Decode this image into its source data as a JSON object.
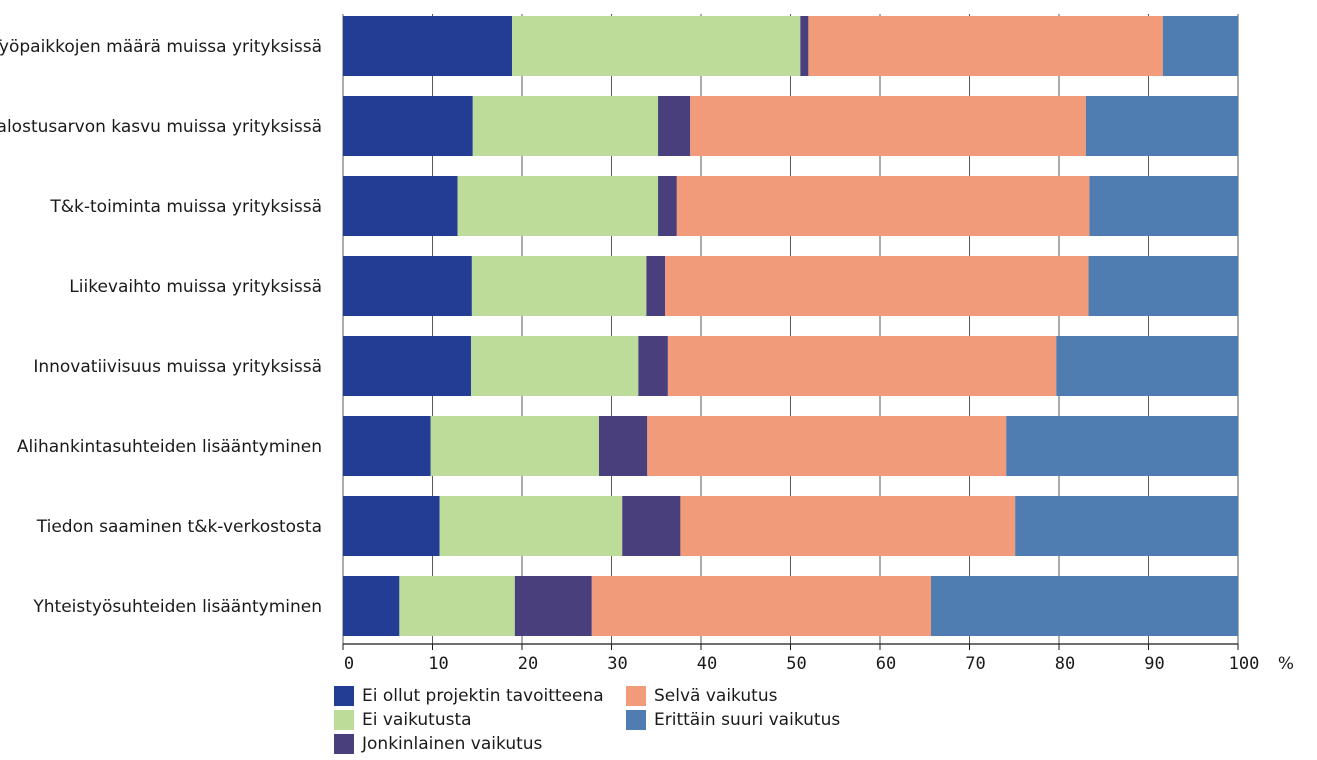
{
  "chart_data": {
    "type": "bar",
    "orientation": "horizontal",
    "stacked": true,
    "categories": [
      "Työpaikkojen määrä muissa yrityksissä",
      "Jalostusarvon kasvu muissa yrityksissä",
      "T&k-toiminta muissa yrityksissä",
      "Liikevaihto muissa yrityksissä",
      "Innovatiivisuus muissa yrityksissä",
      "Alihankintasuhteiden lisääntyminen",
      "Tiedon saaminen t&k-verkostosta",
      "Yhteistyösuhteiden lisääntyminen"
    ],
    "series": [
      {
        "name": "Ei ollut projektin tavoitteena",
        "color": "#233d94",
        "values": [
          18.9,
          14.5,
          12.8,
          14.4,
          14.3,
          9.8,
          10.8,
          6.3
        ]
      },
      {
        "name": "Ei vaikutusta",
        "color": "#bddc9a",
        "values": [
          32.2,
          20.7,
          22.4,
          19.5,
          18.7,
          18.8,
          20.4,
          12.9
        ]
      },
      {
        "name": "Jonkinlainen vaikutus",
        "color": "#4a3f7d",
        "values": [
          0.9,
          3.6,
          2.1,
          2.1,
          3.3,
          5.4,
          6.5,
          8.6
        ]
      },
      {
        "name": "Selvä vaikutus",
        "color": "#f29b7b",
        "values": [
          39.6,
          44.2,
          46.1,
          47.3,
          43.4,
          40.1,
          37.4,
          37.9
        ]
      },
      {
        "name": "Erittäin suuri vaikutus",
        "color": "#4f7db1",
        "values": [
          8.4,
          17.0,
          16.6,
          16.7,
          20.3,
          25.9,
          24.9,
          34.3
        ]
      }
    ],
    "xlim": [
      0,
      100
    ],
    "xticks": [
      0,
      10,
      20,
      30,
      40,
      50,
      60,
      70,
      80,
      90,
      100
    ],
    "x_unit": "%",
    "grid": "vertical",
    "legend_position": "bottom-left"
  },
  "legend_layout": [
    [
      "Ei ollut projektin tavoitteena",
      "Ei vaikutusta",
      "Jonkinlainen vaikutus"
    ],
    [
      "Selvä vaikutus",
      "Erittäin suuri vaikutus"
    ]
  ]
}
